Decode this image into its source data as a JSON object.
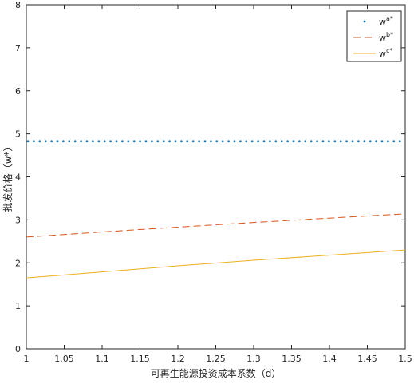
{
  "chart_data": {
    "type": "line",
    "xlabel": "可再生能源投资成本系数（d）",
    "ylabel": "批发价格（w*）",
    "xlim": [
      1,
      1.5
    ],
    "ylim": [
      0,
      8
    ],
    "xticks": [
      "1",
      "1.05",
      "1.1",
      "1.15",
      "1.2",
      "1.25",
      "1.3",
      "1.35",
      "1.4",
      "1.45",
      "1.5"
    ],
    "yticks": [
      "0",
      "1",
      "2",
      "3",
      "4",
      "5",
      "6",
      "7",
      "8"
    ],
    "grid": false,
    "legend_position": "top-right",
    "series": [
      {
        "name": "w^{a*}",
        "base": "w",
        "sup": "a*",
        "style": "dotted",
        "color": "#0072BD",
        "x": [
          1,
          1.5
        ],
        "y": [
          4.83,
          4.83
        ]
      },
      {
        "name": "w^{b*}",
        "base": "w",
        "sup": "b*",
        "style": "dashed",
        "color": "#D95319",
        "x": [
          1,
          1.1,
          1.2,
          1.3,
          1.4,
          1.5
        ],
        "y": [
          2.6,
          2.72,
          2.83,
          2.94,
          3.04,
          3.14
        ]
      },
      {
        "name": "w^{c*}",
        "base": "w",
        "sup": "c*",
        "style": "solid",
        "color": "#EDB120",
        "x": [
          1,
          1.1,
          1.2,
          1.3,
          1.4,
          1.5
        ],
        "y": [
          1.65,
          1.79,
          1.93,
          2.06,
          2.18,
          2.3
        ]
      }
    ]
  }
}
